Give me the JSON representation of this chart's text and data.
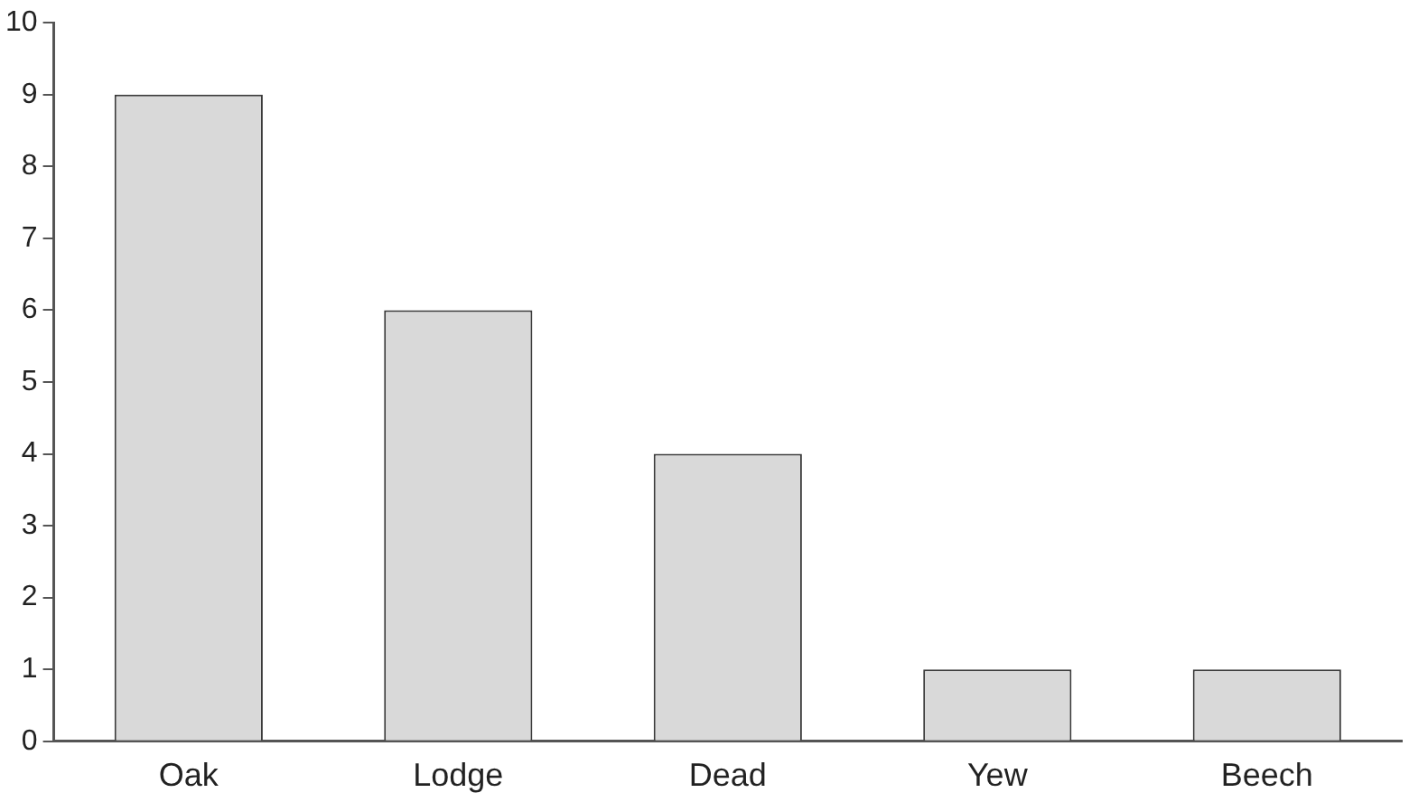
{
  "chart_data": {
    "type": "bar",
    "categories": [
      "Oak",
      "Lodge",
      "Dead",
      "Yew",
      "Beech"
    ],
    "values": [
      9,
      6,
      4,
      1,
      1
    ],
    "color": "#d9d9d9",
    "ylim": [
      0,
      10
    ],
    "yticks": [
      0,
      1,
      2,
      3,
      4,
      5,
      6,
      7,
      8,
      9,
      10
    ],
    "grid": false,
    "legend": false
  }
}
